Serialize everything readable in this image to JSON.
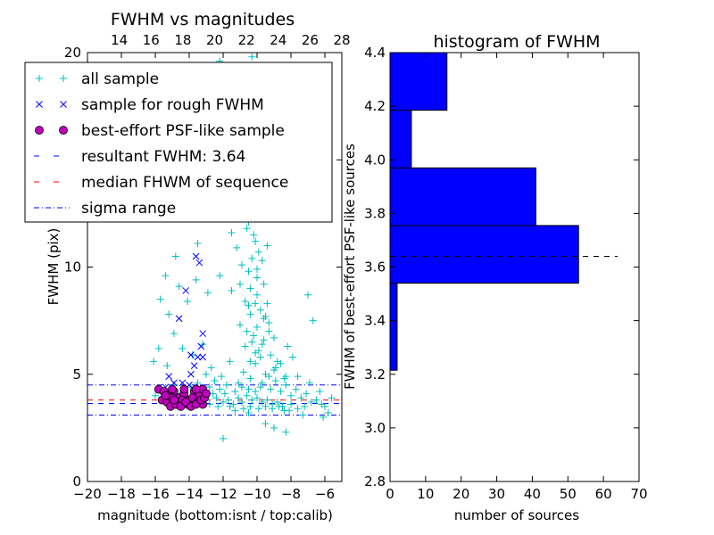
{
  "chart_data": [
    {
      "type": "scatter",
      "title": "FWHM vs magnitudes",
      "xlabel": "magnitude (bottom:isnt / top:calib)",
      "ylabel": "FWHM (pix)",
      "xlim": [
        -20,
        -5
      ],
      "ylim": [
        0,
        20
      ],
      "x_ticks": [
        "−20",
        "−18",
        "−16",
        "−14",
        "−12",
        "−10",
        "−8",
        "−6"
      ],
      "x_tick_values": [
        -20,
        -18,
        -16,
        -14,
        -12,
        -10,
        -8,
        -6
      ],
      "y_ticks": [
        "0",
        "5",
        "10",
        "15",
        "20"
      ],
      "y_tick_values": [
        0,
        5,
        10,
        15,
        20
      ],
      "top_ticks": [
        "14",
        "16",
        "18",
        "20",
        "22",
        "24",
        "26",
        "28"
      ],
      "top_tick_values": [
        14,
        16,
        18,
        20,
        22,
        24,
        26,
        28
      ],
      "top_xlim": [
        12,
        28
      ],
      "legend": [
        {
          "label": "all sample",
          "marker": "plus",
          "color": "#00bfbf"
        },
        {
          "label": "sample for rough FWHM",
          "marker": "x",
          "color": "#0000ff"
        },
        {
          "label": "best-effort PSF-like sample",
          "marker": "circle",
          "color": "#bf00bf"
        },
        {
          "label": "resultant FWHM: 3.64",
          "marker": "dash",
          "color": "#0000ff"
        },
        {
          "label": "median FHWM of sequence",
          "marker": "dash",
          "color": "#ff0000"
        },
        {
          "label": "sigma range",
          "marker": "dashdot",
          "color": "#0000ff"
        }
      ],
      "legend_position": "upper-left",
      "lines": {
        "resultant": 3.64,
        "median": 3.8,
        "sigma": [
          3.1,
          4.5
        ]
      },
      "series": [
        {
          "name": "all sample",
          "color": "#00bfbf",
          "points": [
            [
              -14.6,
              9.1
            ],
            [
              -14.1,
              8.4
            ],
            [
              -13.6,
              9.4
            ],
            [
              -12.9,
              8.8
            ],
            [
              -12.2,
              9.6
            ],
            [
              -11.5,
              8.9
            ],
            [
              -11.0,
              9.2
            ],
            [
              -10.5,
              8.2
            ],
            [
              -10.0,
              8.7
            ],
            [
              -9.6,
              7.6
            ],
            [
              -15.2,
              7.8
            ],
            [
              -14.9,
              6.9
            ],
            [
              -14.4,
              6.2
            ],
            [
              -13.8,
              5.9
            ],
            [
              -13.2,
              6.4
            ],
            [
              -12.7,
              5.3
            ],
            [
              -12.1,
              4.9
            ],
            [
              -11.6,
              5.6
            ],
            [
              -11.1,
              4.6
            ],
            [
              -10.8,
              5.1
            ],
            [
              -10.4,
              4.8
            ],
            [
              -10.1,
              5.5
            ],
            [
              -9.8,
              4.4
            ],
            [
              -9.5,
              5.0
            ],
            [
              -9.2,
              4.3
            ],
            [
              -8.9,
              4.7
            ],
            [
              -8.6,
              4.2
            ],
            [
              -8.3,
              4.5
            ],
            [
              -8.0,
              4.0
            ],
            [
              -7.7,
              4.3
            ],
            [
              -7.4,
              3.9
            ],
            [
              -7.1,
              4.1
            ],
            [
              -6.8,
              3.7
            ],
            [
              -6.5,
              3.8
            ],
            [
              -6.2,
              3.6
            ],
            [
              -6.0,
              3.5
            ],
            [
              -12.4,
              3.9
            ],
            [
              -12.0,
              3.7
            ],
            [
              -11.7,
              3.8
            ],
            [
              -11.4,
              3.6
            ],
            [
              -11.1,
              3.9
            ],
            [
              -10.9,
              3.7
            ],
            [
              -10.6,
              4.0
            ],
            [
              -10.3,
              3.8
            ],
            [
              -10.0,
              3.9
            ],
            [
              -9.7,
              3.7
            ],
            [
              -9.4,
              3.8
            ],
            [
              -9.1,
              3.6
            ],
            [
              -8.8,
              3.7
            ],
            [
              -8.5,
              3.5
            ],
            [
              -13.0,
              3.8
            ],
            [
              -12.8,
              3.6
            ],
            [
              -12.6,
              4.1
            ],
            [
              -13.3,
              3.7
            ],
            [
              -13.6,
              3.9
            ],
            [
              -14.0,
              3.8
            ],
            [
              -14.3,
              3.6
            ],
            [
              -14.7,
              3.9
            ],
            [
              -15.1,
              3.7
            ],
            [
              -15.6,
              3.8
            ],
            [
              -10.2,
              6.8
            ],
            [
              -10.0,
              7.2
            ],
            [
              -9.9,
              6.1
            ],
            [
              -10.3,
              6.5
            ],
            [
              -10.6,
              7.0
            ],
            [
              -10.7,
              6.3
            ],
            [
              -9.8,
              5.8
            ],
            [
              -10.1,
              6.0
            ],
            [
              -10.4,
              5.6
            ],
            [
              -9.7,
              6.4
            ],
            [
              -10.5,
              9.8
            ],
            [
              -10.3,
              10.4
            ],
            [
              -10.1,
              11.2
            ],
            [
              -10.6,
              11.8
            ],
            [
              -10.2,
              12.6
            ],
            [
              -10.8,
              13.4
            ],
            [
              -10.0,
              9.5
            ],
            [
              -10.9,
              10.1
            ],
            [
              -11.2,
              10.9
            ],
            [
              -11.5,
              11.6
            ],
            [
              -9.9,
              10.7
            ],
            [
              -9.6,
              9.2
            ],
            [
              -9.4,
              8.3
            ],
            [
              -9.3,
              7.4
            ],
            [
              -9.6,
              6.6
            ],
            [
              -9.2,
              5.9
            ],
            [
              -9.0,
              5.2
            ],
            [
              -10.4,
              7.8
            ],
            [
              -10.7,
              8.4
            ],
            [
              -11.0,
              7.3
            ],
            [
              -14.2,
              12.5
            ],
            [
              -13.1,
              13.3
            ],
            [
              -12.6,
              14.1
            ],
            [
              -11.9,
              12.9
            ],
            [
              -11.3,
              13.8
            ],
            [
              -10.6,
              14.7
            ],
            [
              -12.3,
              15.3
            ],
            [
              -11.1,
              16.4
            ],
            [
              -11.6,
              18.5
            ],
            [
              -10.9,
              19.3
            ],
            [
              -12.2,
              19.6
            ],
            [
              -10.3,
              19.8
            ],
            [
              -9.5,
              13.0
            ],
            [
              -13.5,
              11.1
            ],
            [
              -14.8,
              10.5
            ],
            [
              -15.4,
              9.6
            ],
            [
              -15.7,
              8.5
            ],
            [
              -15.8,
              6.2
            ],
            [
              -15.3,
              5.4
            ],
            [
              -16.1,
              5.6
            ],
            [
              -7.0,
              8.7
            ],
            [
              -6.7,
              7.5
            ],
            [
              -7.9,
              5.8
            ],
            [
              -8.2,
              6.3
            ],
            [
              -8.8,
              5.6
            ],
            [
              -8.4,
              4.8
            ],
            [
              -7.6,
              4.9
            ],
            [
              -6.9,
              4.6
            ],
            [
              -6.3,
              4.2
            ],
            [
              -5.6,
              3.9
            ],
            [
              -12.0,
              2.0
            ],
            [
              -9.0,
              2.5
            ],
            [
              -8.3,
              2.3
            ],
            [
              -9.5,
              2.7
            ],
            [
              -6.1,
              3.0
            ],
            [
              -5.8,
              3.2
            ],
            [
              -7.3,
              3.1
            ],
            [
              -8.1,
              3.3
            ],
            [
              -10.5,
              3.2
            ],
            [
              -11.3,
              3.3
            ],
            [
              -13.9,
              4.4
            ],
            [
              -13.5,
              4.6
            ],
            [
              -13.0,
              5.0
            ],
            [
              -12.5,
              4.7
            ],
            [
              -12.2,
              4.3
            ],
            [
              -11.8,
              4.5
            ],
            [
              -11.3,
              4.2
            ],
            [
              -10.9,
              4.4
            ],
            [
              -10.5,
              4.3
            ],
            [
              -10.1,
              4.2
            ],
            [
              -9.7,
              4.6
            ],
            [
              -9.3,
              4.9
            ],
            [
              -8.9,
              5.3
            ],
            [
              -8.6,
              5.5
            ],
            [
              -8.3,
              4.9
            ],
            [
              -9.0,
              6.7
            ],
            [
              -9.3,
              7.0
            ],
            [
              -9.5,
              7.7
            ],
            [
              -9.8,
              8.0
            ],
            [
              -10.1,
              8.3
            ],
            [
              -10.4,
              9.0
            ],
            [
              -10.0,
              9.9
            ],
            [
              -9.7,
              10.3
            ],
            [
              -9.4,
              11.0
            ],
            [
              -10.2,
              11.5
            ],
            [
              -10.5,
              12.1
            ],
            [
              -9.9,
              12.8
            ],
            [
              -10.3,
              13.8
            ],
            [
              -11.4,
              14.3
            ],
            [
              -12.5,
              13.6
            ],
            [
              -15.0,
              4.3
            ],
            [
              -14.5,
              4.1
            ],
            [
              -15.5,
              4.2
            ],
            [
              -16.0,
              4.0
            ],
            [
              -13.7,
              4.2
            ],
            [
              -14.9,
              4.5
            ],
            [
              -12.8,
              4.4
            ],
            [
              -11.9,
              4.1
            ],
            [
              -11.6,
              3.5
            ],
            [
              -12.3,
              3.5
            ],
            [
              -10.8,
              3.4
            ],
            [
              -10.4,
              3.5
            ],
            [
              -9.9,
              3.4
            ],
            [
              -9.5,
              3.5
            ],
            [
              -9.1,
              3.4
            ],
            [
              -8.7,
              3.5
            ],
            [
              -8.4,
              3.3
            ],
            [
              -8.0,
              3.6
            ],
            [
              -7.6,
              3.4
            ],
            [
              -7.2,
              3.5
            ]
          ]
        },
        {
          "name": "sample for rough FWHM",
          "color": "#0000ff",
          "points": [
            [
              -13.6,
              10.5
            ],
            [
              -13.4,
              10.2
            ],
            [
              -14.2,
              8.9
            ],
            [
              -14.6,
              7.6
            ],
            [
              -13.2,
              6.9
            ],
            [
              -13.3,
              6.3
            ],
            [
              -13.9,
              5.9
            ],
            [
              -13.5,
              5.8
            ],
            [
              -13.7,
              5.4
            ],
            [
              -13.2,
              5.8
            ],
            [
              -13.9,
              5.0
            ],
            [
              -15.2,
              4.9
            ],
            [
              -14.9,
              4.6
            ],
            [
              -14.0,
              4.5
            ],
            [
              -13.4,
              4.4
            ],
            [
              -15.4,
              4.4
            ],
            [
              -14.4,
              4.6
            ]
          ]
        },
        {
          "name": "best-effort PSF-like sample",
          "color": "#bf00bf",
          "points": [
            [
              -15.8,
              4.3
            ],
            [
              -15.5,
              4.2
            ],
            [
              -15.2,
              4.0
            ],
            [
              -14.9,
              4.2
            ],
            [
              -14.6,
              3.9
            ],
            [
              -14.3,
              4.1
            ],
            [
              -14.0,
              3.8
            ],
            [
              -13.7,
              4.2
            ],
            [
              -13.4,
              4.0
            ],
            [
              -13.2,
              4.3
            ],
            [
              -15.6,
              3.8
            ],
            [
              -15.3,
              3.7
            ],
            [
              -15.0,
              3.9
            ],
            [
              -14.7,
              3.6
            ],
            [
              -14.4,
              3.8
            ],
            [
              -14.1,
              3.6
            ],
            [
              -13.8,
              3.9
            ],
            [
              -13.5,
              3.7
            ],
            [
              -13.2,
              3.6
            ],
            [
              -15.1,
              3.5
            ],
            [
              -14.8,
              3.6
            ],
            [
              -14.5,
              3.5
            ],
            [
              -14.2,
              3.7
            ],
            [
              -13.9,
              3.5
            ],
            [
              -13.6,
              3.6
            ],
            [
              -13.3,
              3.8
            ],
            [
              -13.1,
              3.9
            ],
            [
              -13.0,
              4.1
            ],
            [
              -15.4,
              4.0
            ],
            [
              -14.9,
              3.8
            ],
            [
              -13.6,
              4.3
            ],
            [
              -14.3,
              4.3
            ],
            [
              -15.0,
              4.3
            ]
          ]
        }
      ]
    },
    {
      "type": "bar",
      "orientation": "horizontal",
      "title": "histogram of FWHM",
      "xlabel": "number of sources",
      "ylabel": "FWHM of best-effort PSF-like sources",
      "xlim": [
        0,
        70
      ],
      "ylim": [
        2.8,
        4.4
      ],
      "x_ticks": [
        "0",
        "10",
        "20",
        "30",
        "40",
        "50",
        "60",
        "70"
      ],
      "x_tick_values": [
        0,
        10,
        20,
        30,
        40,
        50,
        60,
        70
      ],
      "y_ticks": [
        "2.8",
        "3.0",
        "3.2",
        "3.4",
        "3.6",
        "3.8",
        "4.0",
        "4.2",
        "4.4"
      ],
      "y_tick_values": [
        2.8,
        3.0,
        3.2,
        3.4,
        3.6,
        3.8,
        4.0,
        4.2,
        4.4
      ],
      "bar_color": "#0000ff",
      "bins": [
        {
          "low": 3.215,
          "high": 3.54,
          "count": 2
        },
        {
          "low": 3.54,
          "high": 3.755,
          "count": 53
        },
        {
          "low": 3.755,
          "high": 3.97,
          "count": 41
        },
        {
          "low": 3.97,
          "high": 4.185,
          "count": 6
        },
        {
          "low": 4.185,
          "high": 4.4,
          "count": 16
        }
      ],
      "reference_line": {
        "value": 3.64,
        "x_extent": [
          0,
          64
        ]
      }
    }
  ]
}
